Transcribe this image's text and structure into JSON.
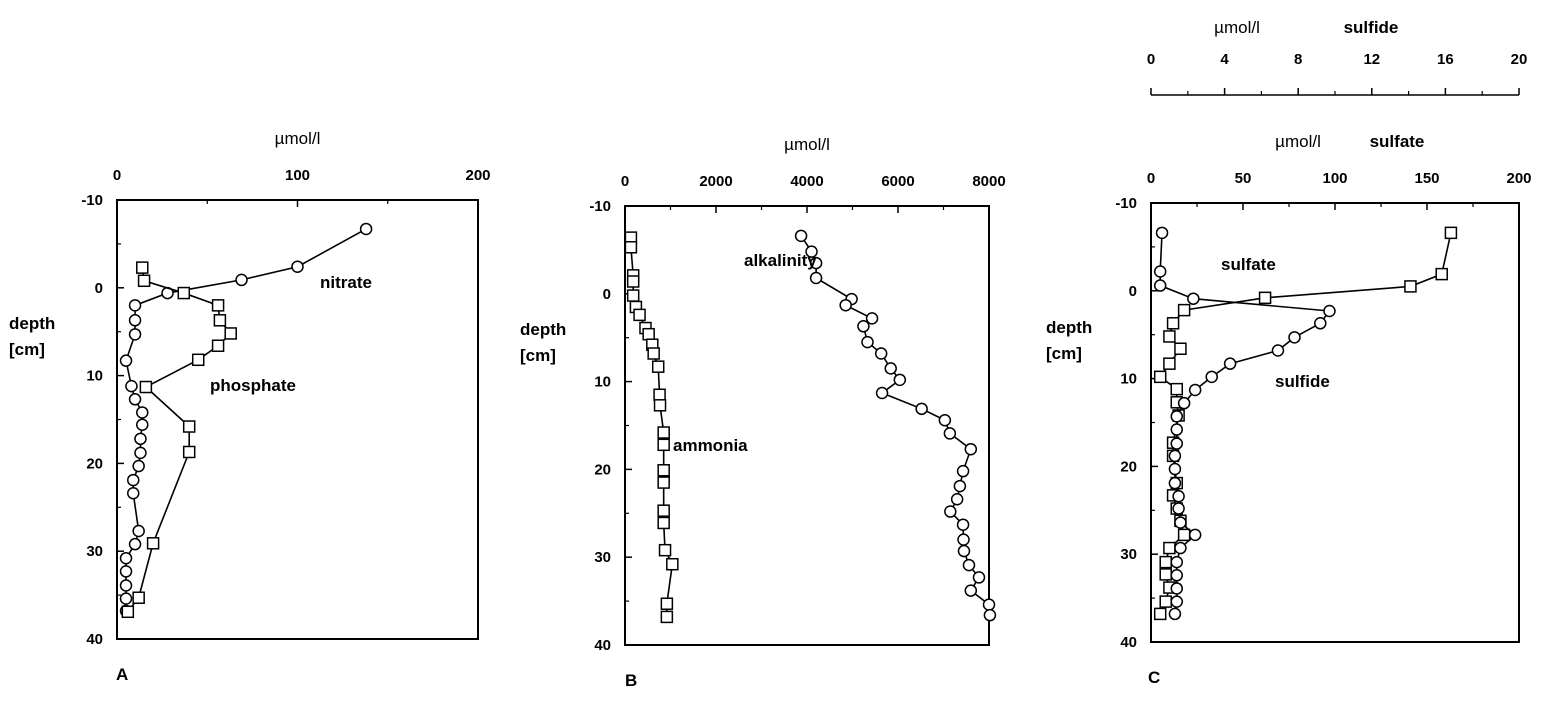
{
  "figure": {
    "colors": {
      "ink": "#000000",
      "background": "#ffffff"
    }
  },
  "chart_data": [
    {
      "type": "line",
      "panel_label": "A",
      "xlabel": "µmol/l",
      "ylabel": "depth [cm]",
      "xlim": [
        0,
        200
      ],
      "ylim": [
        -10,
        40
      ],
      "y_inverted": true,
      "x_ticks": [
        "0",
        "100",
        "200"
      ],
      "y_ticks": [
        "-10",
        "0",
        "10",
        "20",
        "30",
        "40"
      ],
      "grid": false,
      "series": [
        {
          "name": "nitrate",
          "marker": "circle",
          "points": [
            [
              138,
              -6.7
            ],
            [
              100,
              -2.4
            ],
            [
              69,
              -0.9
            ],
            [
              28,
              0.6
            ],
            [
              10,
              2.0
            ],
            [
              10,
              3.7
            ],
            [
              10,
              5.3
            ],
            [
              5,
              8.3
            ],
            [
              8,
              11.2
            ],
            [
              10,
              12.7
            ],
            [
              14,
              14.2
            ],
            [
              14,
              15.6
            ],
            [
              13,
              17.2
            ],
            [
              13,
              18.8
            ],
            [
              12,
              20.3
            ],
            [
              9,
              21.9
            ],
            [
              9,
              23.4
            ],
            [
              12,
              27.7
            ],
            [
              10,
              29.2
            ],
            [
              5,
              30.8
            ],
            [
              5,
              32.3
            ],
            [
              5,
              33.9
            ],
            [
              5,
              35.4
            ],
            [
              5,
              36.8
            ]
          ]
        },
        {
          "name": "phosphate",
          "marker": "square",
          "points": [
            [
              14,
              -2.3
            ],
            [
              15,
              -0.8
            ],
            [
              37,
              0.6
            ],
            [
              56,
              2.0
            ],
            [
              57,
              3.7
            ],
            [
              63,
              5.2
            ],
            [
              56,
              6.6
            ],
            [
              45,
              8.2
            ],
            [
              16,
              11.3
            ],
            [
              40,
              15.8
            ],
            [
              40,
              18.7
            ],
            [
              20,
              29.1
            ],
            [
              12,
              35.3
            ],
            [
              6,
              36.9
            ]
          ]
        }
      ]
    },
    {
      "type": "line",
      "panel_label": "B",
      "xlabel": "µmol/l",
      "ylabel": "depth [cm]",
      "xlim": [
        0,
        8000
      ],
      "ylim": [
        -10,
        40
      ],
      "y_inverted": true,
      "x_ticks": [
        "0",
        "2000",
        "4000",
        "6000",
        "8000"
      ],
      "y_ticks": [
        "-10",
        "0",
        "10",
        "20",
        "30",
        "40"
      ],
      "grid": false,
      "series": [
        {
          "name": "alkalinity",
          "marker": "circle",
          "points": [
            [
              3870,
              -6.6
            ],
            [
              4100,
              -4.8
            ],
            [
              4200,
              -3.5
            ],
            [
              4200,
              -1.8
            ],
            [
              4980,
              0.6
            ],
            [
              4850,
              1.3
            ],
            [
              5430,
              2.8
            ],
            [
              5240,
              3.7
            ],
            [
              5330,
              5.5
            ],
            [
              5630,
              6.8
            ],
            [
              5840,
              8.5
            ],
            [
              6040,
              9.8
            ],
            [
              5650,
              11.3
            ],
            [
              6520,
              13.1
            ],
            [
              7030,
              14.4
            ],
            [
              7140,
              15.9
            ],
            [
              7600,
              17.7
            ],
            [
              7430,
              20.2
            ],
            [
              7360,
              21.9
            ],
            [
              7300,
              23.4
            ],
            [
              7150,
              24.8
            ],
            [
              7430,
              26.3
            ],
            [
              7440,
              28.0
            ],
            [
              7450,
              29.3
            ],
            [
              7560,
              30.9
            ],
            [
              7780,
              32.3
            ],
            [
              7600,
              33.8
            ],
            [
              8000,
              35.4
            ],
            [
              8020,
              36.6
            ]
          ]
        },
        {
          "name": "ammonia",
          "marker": "square",
          "points": [
            [
              130,
              -6.4
            ],
            [
              130,
              -5.3
            ],
            [
              180,
              -2.1
            ],
            [
              180,
              -1.4
            ],
            [
              180,
              0.2
            ],
            [
              240,
              1.5
            ],
            [
              320,
              2.4
            ],
            [
              450,
              3.9
            ],
            [
              520,
              4.6
            ],
            [
              600,
              5.8
            ],
            [
              630,
              6.8
            ],
            [
              730,
              8.3
            ],
            [
              760,
              11.5
            ],
            [
              770,
              12.7
            ],
            [
              850,
              15.8
            ],
            [
              850,
              17.2
            ],
            [
              850,
              20.1
            ],
            [
              850,
              21.5
            ],
            [
              850,
              24.7
            ],
            [
              850,
              26.1
            ],
            [
              880,
              29.2
            ],
            [
              1040,
              30.8
            ],
            [
              920,
              35.3
            ],
            [
              920,
              36.8
            ]
          ]
        }
      ]
    },
    {
      "type": "line",
      "panel_label": "C",
      "xlabel": "µmol/l",
      "ylabel": "depth [cm]",
      "xlim": [
        0,
        200
      ],
      "ylim": [
        -10,
        40
      ],
      "y_inverted": true,
      "x_ticks": [
        "0",
        "50",
        "100",
        "150",
        "200"
      ],
      "y_ticks": [
        "-10",
        "0",
        "10",
        "20",
        "30",
        "40"
      ],
      "secondary_x_axis": {
        "label_unit": "µmol/l",
        "label_name": "sulfide",
        "xlim": [
          0,
          20
        ],
        "ticks": [
          "0",
          "4",
          "8",
          "12",
          "16",
          "20"
        ]
      },
      "primary_axis_name": "sulfate",
      "grid": false,
      "series": [
        {
          "name": "sulfate",
          "marker": "square",
          "axis": "primary",
          "points": [
            [
              163,
              -6.6
            ],
            [
              158,
              -1.9
            ],
            [
              141,
              -0.5
            ],
            [
              62,
              0.8
            ],
            [
              18,
              2.2
            ],
            [
              12,
              3.7
            ],
            [
              10,
              5.2
            ],
            [
              16,
              6.6
            ],
            [
              10,
              8.3
            ],
            [
              5,
              9.8
            ],
            [
              14,
              11.2
            ],
            [
              14,
              12.7
            ],
            [
              15,
              14.2
            ],
            [
              12,
              17.3
            ],
            [
              12,
              18.8
            ],
            [
              14,
              21.9
            ],
            [
              12,
              23.3
            ],
            [
              14,
              24.8
            ],
            [
              16,
              26.2
            ],
            [
              18,
              27.8
            ],
            [
              10,
              29.3
            ],
            [
              8,
              30.9
            ],
            [
              8,
              32.3
            ],
            [
              10,
              33.8
            ],
            [
              8,
              35.4
            ],
            [
              5,
              36.8
            ]
          ]
        },
        {
          "name": "sulfide",
          "marker": "circle",
          "axis": "secondary",
          "points": [
            [
              0.6,
              -6.6
            ],
            [
              0.5,
              -2.2
            ],
            [
              0.5,
              -0.6
            ],
            [
              2.3,
              0.9
            ],
            [
              9.7,
              2.3
            ],
            [
              9.2,
              3.7
            ],
            [
              7.8,
              5.3
            ],
            [
              6.9,
              6.8
            ],
            [
              4.3,
              8.3
            ],
            [
              3.3,
              9.8
            ],
            [
              2.4,
              11.3
            ],
            [
              1.8,
              12.8
            ],
            [
              1.4,
              14.3
            ],
            [
              1.4,
              15.8
            ],
            [
              1.4,
              17.4
            ],
            [
              1.3,
              18.8
            ],
            [
              1.3,
              20.3
            ],
            [
              1.3,
              21.9
            ],
            [
              1.5,
              23.4
            ],
            [
              1.5,
              24.8
            ],
            [
              1.6,
              26.4
            ],
            [
              2.4,
              27.8
            ],
            [
              1.6,
              29.3
            ],
            [
              1.4,
              30.9
            ],
            [
              1.4,
              32.4
            ],
            [
              1.4,
              33.9
            ],
            [
              1.4,
              35.4
            ],
            [
              1.3,
              36.8
            ]
          ]
        }
      ]
    }
  ]
}
